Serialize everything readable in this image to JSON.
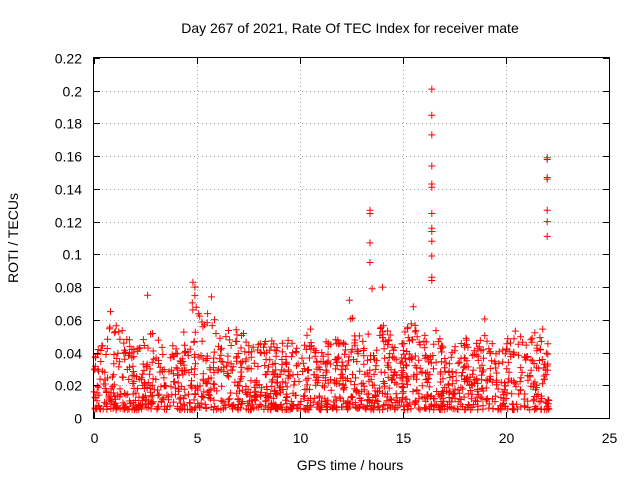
{
  "chart_data": {
    "type": "scatter",
    "title": "Day 267 of 2021, Rate Of TEC Index for receiver mate",
    "xlabel": "GPS time / hours",
    "ylabel": "ROTI / TECUs",
    "xlim": [
      0,
      25
    ],
    "ylim": [
      0,
      0.22
    ],
    "grid": true,
    "marker": "+",
    "color": "#ff0000",
    "x_ticks": [
      "0",
      "5",
      "10",
      "15",
      "20",
      "25"
    ],
    "y_ticks": [
      "0",
      "0.02",
      "0.04",
      "0.06",
      "0.08",
      "0.1",
      "0.12",
      "0.14",
      "0.16",
      "0.18",
      "0.2",
      "0.22"
    ],
    "peak_points": [
      {
        "x": 16.4,
        "y": 0.201
      },
      {
        "x": 16.4,
        "y": 0.185
      },
      {
        "x": 16.4,
        "y": 0.173
      },
      {
        "x": 16.4,
        "y": 0.154
      },
      {
        "x": 16.4,
        "y": 0.143
      },
      {
        "x": 16.4,
        "y": 0.141
      },
      {
        "x": 16.4,
        "y": 0.125
      },
      {
        "x": 16.4,
        "y": 0.116
      },
      {
        "x": 16.4,
        "y": 0.114
      },
      {
        "x": 16.4,
        "y": 0.108
      },
      {
        "x": 16.4,
        "y": 0.099
      },
      {
        "x": 16.4,
        "y": 0.086
      },
      {
        "x": 16.4,
        "y": 0.084
      },
      {
        "x": 13.4,
        "y": 0.127
      },
      {
        "x": 13.4,
        "y": 0.125
      },
      {
        "x": 13.4,
        "y": 0.107
      },
      {
        "x": 13.4,
        "y": 0.095
      },
      {
        "x": 13.5,
        "y": 0.079
      },
      {
        "x": 14.0,
        "y": 0.08
      },
      {
        "x": 22.0,
        "y": 0.159
      },
      {
        "x": 22.0,
        "y": 0.158
      },
      {
        "x": 22.0,
        "y": 0.147
      },
      {
        "x": 22.0,
        "y": 0.146
      },
      {
        "x": 22.0,
        "y": 0.127
      },
      {
        "x": 22.0,
        "y": 0.12
      },
      {
        "x": 22.0,
        "y": 0.111
      },
      {
        "x": 2.6,
        "y": 0.075
      },
      {
        "x": 4.8,
        "y": 0.083
      },
      {
        "x": 4.9,
        "y": 0.08
      },
      {
        "x": 5.7,
        "y": 0.074
      },
      {
        "x": 0.8,
        "y": 0.065
      },
      {
        "x": 12.4,
        "y": 0.072
      },
      {
        "x": 15.5,
        "y": 0.068
      }
    ],
    "envelope": {
      "description": "upper envelope of dense ROTI cloud (hours, ROTI)",
      "x": [
        0.0,
        0.3,
        0.6,
        1.0,
        1.5,
        2.0,
        2.5,
        3.0,
        3.5,
        4.0,
        4.5,
        4.8,
        5.2,
        5.6,
        6.0,
        6.5,
        7.0,
        7.5,
        8.0,
        8.5,
        9.0,
        9.5,
        10.0,
        10.5,
        11.0,
        11.5,
        12.0,
        12.5,
        13.0,
        13.5,
        14.0,
        14.5,
        15.0,
        15.5,
        16.0,
        16.5,
        17.0,
        17.5,
        18.0,
        18.5,
        19.0,
        19.5,
        20.0,
        20.5,
        21.0,
        21.5,
        22.0,
        22.1
      ],
      "y": [
        0.035,
        0.048,
        0.055,
        0.058,
        0.052,
        0.045,
        0.05,
        0.055,
        0.048,
        0.045,
        0.06,
        0.08,
        0.07,
        0.063,
        0.06,
        0.058,
        0.055,
        0.05,
        0.045,
        0.048,
        0.045,
        0.048,
        0.05,
        0.055,
        0.045,
        0.05,
        0.048,
        0.065,
        0.055,
        0.058,
        0.06,
        0.048,
        0.052,
        0.06,
        0.05,
        0.055,
        0.048,
        0.045,
        0.05,
        0.045,
        0.065,
        0.045,
        0.048,
        0.055,
        0.05,
        0.058,
        0.052,
        0.045
      ],
      "floor": 0.005
    }
  }
}
